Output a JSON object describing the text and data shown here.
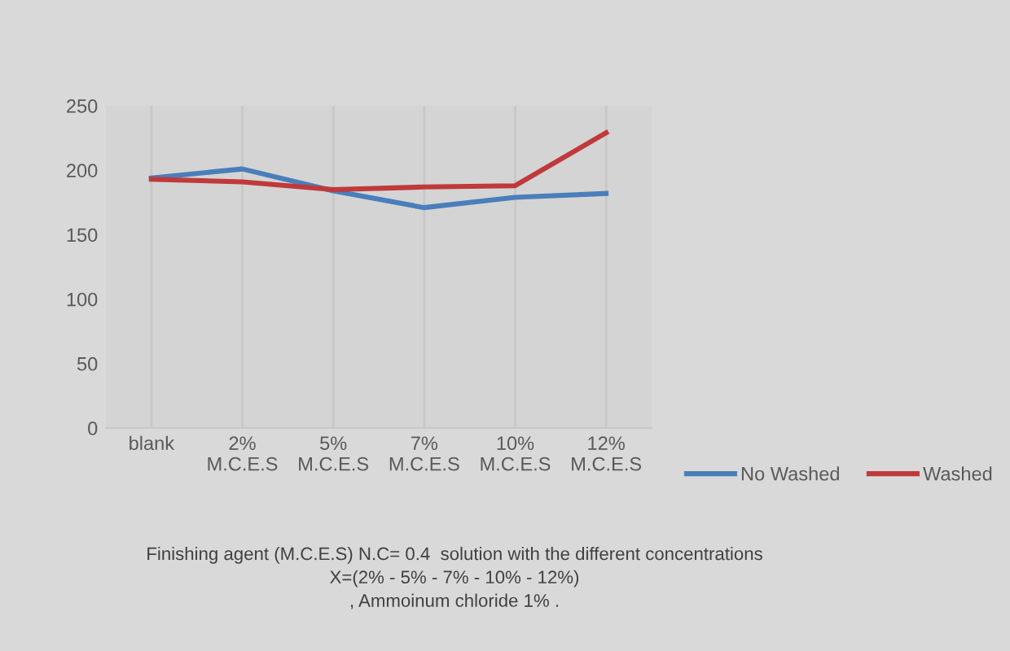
{
  "chart_data": {
    "type": "line",
    "categories": [
      "blank",
      "2%\nM.C.E.S",
      "5%\nM.C.E.S",
      "7%\nM.C.E.S",
      "10%\nM.C.E.S",
      "12%\nM.C.E.S"
    ],
    "series": [
      {
        "name": "No Washed",
        "color": "#4a7ebb",
        "values": [
          194,
          201,
          184,
          171,
          179,
          182
        ]
      },
      {
        "name": "Washed",
        "color": "#c0393b",
        "values": [
          193,
          191,
          185,
          187,
          188,
          229
        ]
      }
    ],
    "ylim": [
      0,
      250
    ],
    "yticks": [
      0,
      50,
      100,
      150,
      200,
      250
    ],
    "grid": "x",
    "legend": "bottom right",
    "marker": "none",
    "line_style": "solid",
    "annotations": [
      "Finishing agent (M.C.E.S) N.C= 0.4  solution with the different concentrations\nX=(2% - 5% - 7% - 10% - 12%)\n, Ammoinum chloride 1% ."
    ]
  }
}
